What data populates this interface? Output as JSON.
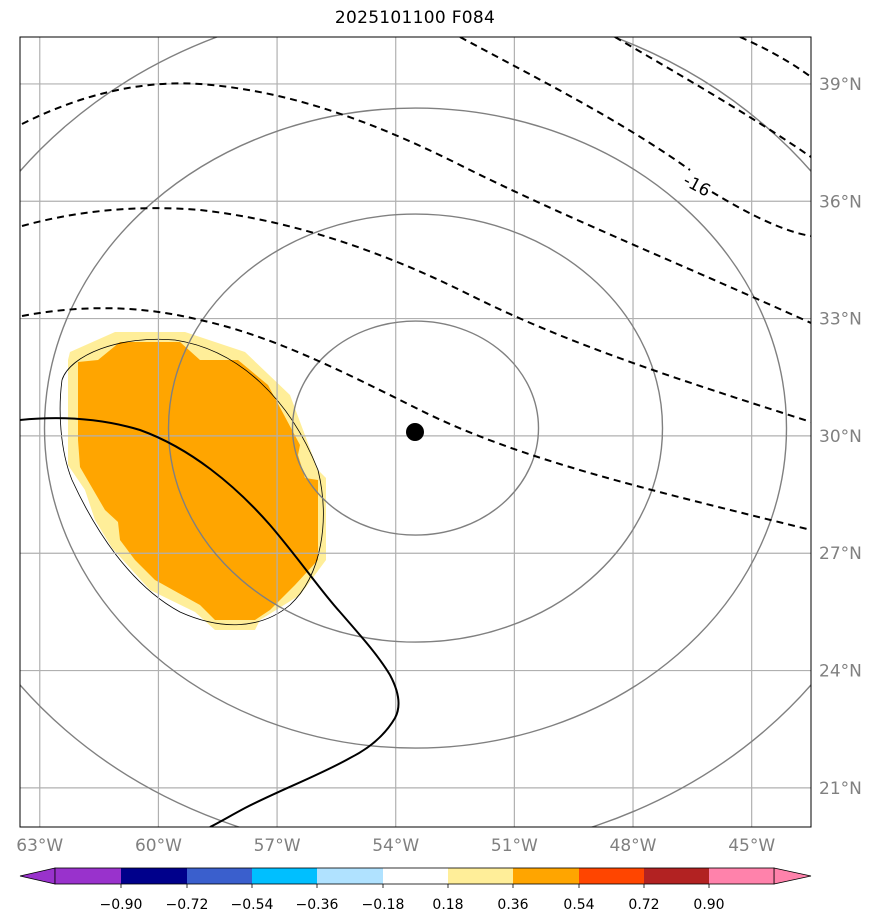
{
  "title": "2025101100 F084",
  "map": {
    "lon_range": [
      -63.5,
      -43.5
    ],
    "lat_range": [
      20.0,
      40.2
    ],
    "lon_ticks": [
      {
        "value": -63,
        "label": "63°W"
      },
      {
        "value": -60,
        "label": "60°W"
      },
      {
        "value": -57,
        "label": "57°W"
      },
      {
        "value": -54,
        "label": "54°W"
      },
      {
        "value": -51,
        "label": "51°W"
      },
      {
        "value": -48,
        "label": "48°W"
      },
      {
        "value": -45,
        "label": "45°W"
      }
    ],
    "lat_ticks": [
      {
        "value": 21,
        "label": "21°N"
      },
      {
        "value": 24,
        "label": "24°N"
      },
      {
        "value": 27,
        "label": "27°N"
      },
      {
        "value": 30,
        "label": "30°N"
      },
      {
        "value": 33,
        "label": "33°N"
      },
      {
        "value": 36,
        "label": "36°N"
      },
      {
        "value": 39,
        "label": "39°N"
      }
    ],
    "grid": true,
    "center": {
      "lon": -53.5,
      "lat": 30.2
    },
    "range_rings_count": 4,
    "contour_label": "-16",
    "colors": {
      "grid": "#b0b0b0",
      "rings": "#808080",
      "shading_light": "#ffee99",
      "shading_dark": "#ffa500",
      "track": "#000000"
    }
  },
  "colorbar": {
    "colors": [
      "#9932cc",
      "#00008b",
      "#3a5fcd",
      "#00bfff",
      "#b0e2ff",
      "#ffffff",
      "#ffee99",
      "#ffa500",
      "#ff4500",
      "#b22222",
      "#ff82ab"
    ],
    "tick_labels": [
      "−0.90",
      "−0.72",
      "−0.54",
      "−0.36",
      "−0.18",
      "0.18",
      "0.36",
      "0.54",
      "0.72",
      "0.90"
    ],
    "extend": "both"
  }
}
